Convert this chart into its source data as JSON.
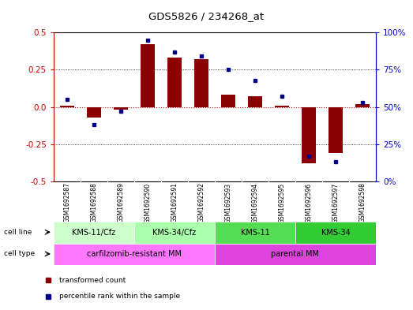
{
  "title": "GDS5826 / 234268_at",
  "samples": [
    "GSM1692587",
    "GSM1692588",
    "GSM1692589",
    "GSM1692590",
    "GSM1692591",
    "GSM1692592",
    "GSM1692593",
    "GSM1692594",
    "GSM1692595",
    "GSM1692596",
    "GSM1692597",
    "GSM1692598"
  ],
  "transformed_count": [
    0.01,
    -0.07,
    -0.02,
    0.42,
    0.33,
    0.32,
    0.08,
    0.07,
    0.01,
    -0.38,
    -0.31,
    0.02
  ],
  "percentile_rank": [
    55,
    38,
    47,
    95,
    87,
    84,
    75,
    68,
    57,
    17,
    13,
    53
  ],
  "bar_color": "#8B0000",
  "dot_color": "#00008B",
  "cell_line_groups": [
    {
      "label": "KMS-11/Cfz",
      "start": 0,
      "end": 3,
      "color": "#ccffcc"
    },
    {
      "label": "KMS-34/Cfz",
      "start": 3,
      "end": 6,
      "color": "#aaffaa"
    },
    {
      "label": "KMS-11",
      "start": 6,
      "end": 9,
      "color": "#55dd55"
    },
    {
      "label": "KMS-34",
      "start": 9,
      "end": 12,
      "color": "#33cc33"
    }
  ],
  "cell_type_groups": [
    {
      "label": "carfilzomib-resistant MM",
      "start": 0,
      "end": 6,
      "color": "#ff77ff"
    },
    {
      "label": "parental MM",
      "start": 6,
      "end": 12,
      "color": "#dd44dd"
    }
  ],
  "ylim_left": [
    -0.5,
    0.5
  ],
  "ylim_right": [
    0,
    100
  ],
  "yticks_left": [
    -0.5,
    -0.25,
    0.0,
    0.25,
    0.5
  ],
  "yticks_right": [
    0,
    25,
    50,
    75,
    100
  ],
  "ytick_labels_right": [
    "0%",
    "25%",
    "50%",
    "75%",
    "100%"
  ],
  "left_tick_color": "#cc0000",
  "right_tick_color": "#0000cc",
  "background_color": "#ffffff",
  "sample_bg_color": "#cccccc",
  "sample_border_color": "#aaaaaa",
  "zero_line_color": "#cc0000",
  "dotted_line_color": "#000000"
}
